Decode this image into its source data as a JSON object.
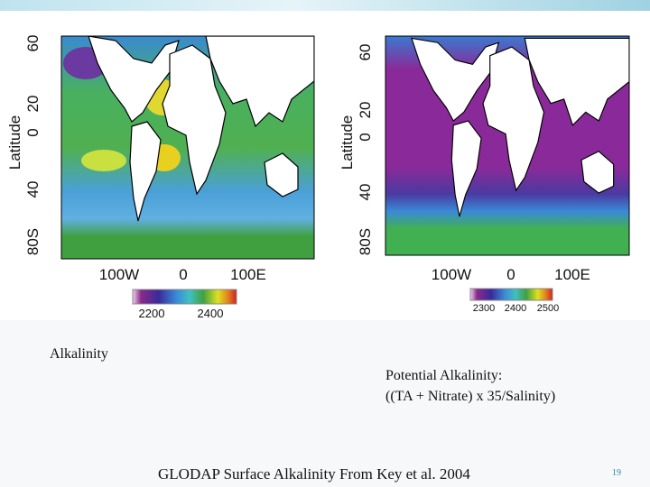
{
  "maps": [
    {
      "y_axis_label": "Latitude",
      "lat_ticks": [
        "60",
        "20",
        "0",
        "40",
        "80S"
      ],
      "lon_ticks": [
        "100W",
        "0",
        "100E"
      ],
      "colorbar_ticks": [
        "2200",
        "2400"
      ]
    },
    {
      "y_axis_label": "Latitude",
      "lat_ticks": [
        "60",
        "20",
        "0",
        "40",
        "80S"
      ],
      "lon_ticks": [
        "100W",
        "0",
        "100E"
      ],
      "colorbar_ticks": [
        "2300",
        "2400",
        "2500"
      ]
    }
  ],
  "captions": {
    "left": "Alkalinity",
    "right_title": "Potential Alkalinity:",
    "right_formula": "((TA + Nitrate) x 35/Salinity)",
    "footer": "GLODAP Surface Alkalinity From Key et al. 2004"
  },
  "slide_number": "19"
}
